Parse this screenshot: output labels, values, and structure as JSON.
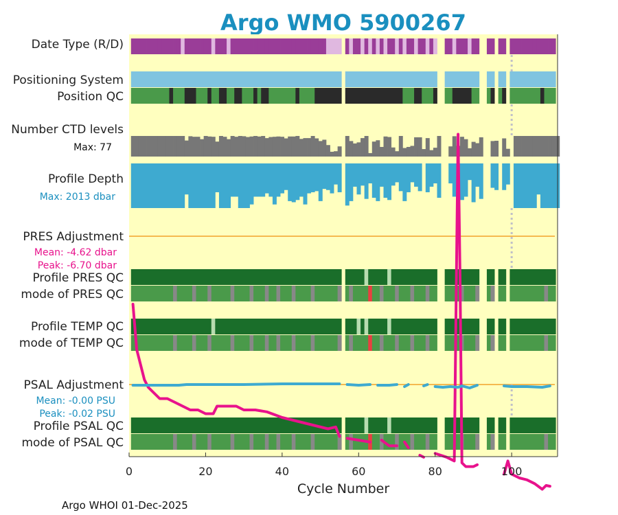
{
  "chart_data": {
    "type": "line",
    "title": "Argo WMO 5900267",
    "xlabel": "Cycle Number",
    "xlim": [
      0,
      112
    ],
    "xticks": [
      0,
      20,
      40,
      60,
      80,
      100
    ],
    "footer": "Argo WHOI 01-Dec-2025",
    "missing_cycles": [
      56,
      81,
      82,
      92,
      93,
      96,
      99
    ],
    "marker_cycle": 100,
    "colors": {
      "background": "#ffffbf",
      "realtime": "#e0b8e0",
      "delayed": "#9a3d98",
      "positioning": "#80c4e0",
      "qc_good": "#4a9a4a",
      "qc_bad": "#2a2a2a",
      "ctd": "#777777",
      "depth": "#3eaad0",
      "pres_adj": "#e8128c",
      "psal_adj": "#3eaad0",
      "ref_line": "#f5b94f",
      "profile_a": "#1a6e2a",
      "profile_light": "#b8dcb0",
      "mode_good": "#4a9a4a",
      "mode_probable": "#888888",
      "mode_bad": "#e84040",
      "title_color": "#1a8fbf"
    },
    "rows": {
      "date_type": {
        "label": "Date Type (R/D)",
        "realtime_cycles": [
          14,
          22,
          26,
          52,
          53,
          54,
          55,
          58,
          61,
          63,
          65,
          67,
          70,
          72,
          75,
          78,
          80,
          85,
          89
        ]
      },
      "positioning": {
        "label": "Positioning System"
      },
      "position_qc": {
        "label": "Position QC",
        "bad_cycles": [
          11,
          15,
          16,
          17,
          21,
          24,
          25,
          28,
          29,
          33,
          35,
          36,
          44,
          49,
          50,
          51,
          52,
          53,
          54,
          55,
          57,
          58,
          59,
          60,
          61,
          62,
          63,
          64,
          65,
          66,
          67,
          68,
          69,
          70,
          71,
          75,
          76,
          80,
          85,
          86,
          87,
          88,
          89,
          95,
          98,
          99,
          108
        ]
      },
      "ctd": {
        "label": "Number CTD levels",
        "max_label": "Max: 77",
        "max": 77,
        "values": [
          77,
          77,
          77,
          77,
          77,
          77,
          77,
          77,
          77,
          77,
          77,
          77,
          77,
          77,
          60,
          76,
          74,
          74,
          65,
          77,
          75,
          74,
          56,
          77,
          74,
          65,
          77,
          74,
          77,
          76,
          73,
          75,
          77,
          75,
          77,
          69,
          73,
          74,
          75,
          74,
          68,
          75,
          75,
          77,
          66,
          69,
          69,
          77,
          68,
          58,
          63,
          43,
          18,
          20,
          38,
          0,
          77,
          58,
          49,
          53,
          69,
          77,
          13,
          56,
          61,
          36,
          75,
          73,
          34,
          20,
          77,
          32,
          36,
          40,
          72,
          72,
          28,
          69,
          24,
          33,
          77,
          0,
          0,
          38,
          76,
          40,
          74,
          65,
          31,
          55,
          50,
          72,
          0,
          0,
          58,
          59,
          0,
          68,
          29,
          0,
          77,
          77,
          77,
          77,
          77,
          77,
          77,
          77,
          77,
          77,
          77,
          77
        ]
      },
      "depth": {
        "label": "Profile Depth",
        "max_label": "Max: 2013 dbar",
        "max": 2013,
        "values": [
          2013,
          2013,
          2013,
          2013,
          2013,
          2013,
          2013,
          2013,
          2013,
          2013,
          2013,
          2013,
          2013,
          2013,
          1400,
          2013,
          2013,
          2013,
          2013,
          2013,
          2013,
          2013,
          1300,
          2013,
          2013,
          2013,
          1500,
          1500,
          2013,
          2013,
          2013,
          1850,
          1500,
          1500,
          1500,
          1350,
          1500,
          1850,
          1500,
          1350,
          1200,
          1700,
          1750,
          1650,
          1500,
          1850,
          1350,
          1300,
          1250,
          1700,
          1150,
          1200,
          1350,
          950,
          1300,
          0,
          1900,
          1700,
          1050,
          1400,
          1000,
          1600,
          900,
          1550,
          1700,
          1050,
          1550,
          1650,
          1000,
          850,
          1250,
          1700,
          1300,
          850,
          1050,
          1250,
          0,
          1300,
          1050,
          900,
          1550,
          0,
          0,
          900,
          1500,
          1300,
          1650,
          1500,
          750,
          1750,
          1050,
          1600,
          0,
          0,
          1100,
          1200,
          0,
          1200,
          950,
          0,
          2013,
          2013,
          2013,
          2013,
          2013,
          2013,
          1400,
          2013,
          2013,
          2013,
          2013,
          2013
        ]
      },
      "pres_adj": {
        "label": "PRES Adjustment",
        "mean_label": "Mean: -4.62 dbar",
        "peak_label": "Peak: -6.70 dbar"
      },
      "pres_qc": {
        "label": "Profile PRES QC",
        "label2": "mode of PRES QC"
      },
      "temp_qc": {
        "label": "Profile TEMP QC",
        "label2": "mode of TEMP QC"
      },
      "psal_adj": {
        "label": "PSAL Adjustment",
        "mean_label": "Mean: -0.00 PSU",
        "peak_label": "Peak: -0.02 PSU"
      },
      "psal_qc": {
        "label": "Profile PSAL QC",
        "label2": "mode of PSAL QC"
      }
    },
    "qc_light_cycles_pres": [
      62,
      68
    ],
    "qc_light_cycles_temp": [
      22,
      60,
      62,
      68
    ],
    "qc_light_cycles_psal": [
      62,
      68
    ],
    "mode_probable_cycles": [
      12,
      17,
      21,
      27,
      32,
      36,
      39,
      43,
      48,
      55,
      58,
      63,
      66,
      70,
      74,
      78,
      82,
      87,
      91,
      95,
      109
    ],
    "mode_bad_cycles": [
      63
    ],
    "pres_series": [
      {
        "x": 1,
        "y": -1.8
      },
      {
        "x": 2,
        "y": -3.0
      },
      {
        "x": 3,
        "y": -3.4
      },
      {
        "x": 4,
        "y": -3.8
      },
      {
        "x": 5,
        "y": -4.0
      },
      {
        "x": 6,
        "y": -4.1
      },
      {
        "x": 7,
        "y": -4.2
      },
      {
        "x": 8,
        "y": -4.3
      },
      {
        "x": 10,
        "y": -4.3
      },
      {
        "x": 12,
        "y": -4.4
      },
      {
        "x": 14,
        "y": -4.5
      },
      {
        "x": 16,
        "y": -4.6
      },
      {
        "x": 18,
        "y": -4.6
      },
      {
        "x": 20,
        "y": -4.7
      },
      {
        "x": 22,
        "y": -4.7
      },
      {
        "x": 23,
        "y": -4.5
      },
      {
        "x": 25,
        "y": -4.5
      },
      {
        "x": 28,
        "y": -4.5
      },
      {
        "x": 30,
        "y": -4.6
      },
      {
        "x": 33,
        "y": -4.6
      },
      {
        "x": 36,
        "y": -4.65
      },
      {
        "x": 40,
        "y": -4.8
      },
      {
        "x": 44,
        "y": -4.9
      },
      {
        "x": 48,
        "y": -5.0
      },
      {
        "x": 52,
        "y": -5.1
      },
      {
        "x": 54,
        "y": -5.05
      },
      {
        "x": 55,
        "y": -5.3
      },
      {
        "x": null,
        "y": null
      },
      {
        "x": 57,
        "y": -5.35
      },
      {
        "x": 60,
        "y": -5.4
      },
      {
        "x": 63,
        "y": -5.45
      },
      {
        "x": null,
        "y": null
      },
      {
        "x": 66,
        "y": -5.4
      },
      {
        "x": 68,
        "y": -5.55
      },
      {
        "x": 70,
        "y": -5.55
      },
      {
        "x": null,
        "y": null
      },
      {
        "x": 72,
        "y": -5.45
      },
      {
        "x": 73,
        "y": -5.6
      },
      {
        "x": null,
        "y": null
      },
      {
        "x": 76,
        "y": -5.8
      },
      {
        "x": 77,
        "y": -5.85
      },
      {
        "x": null,
        "y": null
      },
      {
        "x": 80,
        "y": -5.75
      },
      {
        "x": 83,
        "y": -5.85
      },
      {
        "x": 85,
        "y": -5.95
      },
      {
        "x": 85.5,
        "y": -1.5
      },
      {
        "x": 86,
        "y": 2.7
      },
      {
        "x": 86.5,
        "y": -1.0
      },
      {
        "x": 87,
        "y": -6.0
      },
      {
        "x": 88,
        "y": -6.1
      },
      {
        "x": 90,
        "y": -6.1
      },
      {
        "x": 91,
        "y": -6.05
      },
      {
        "x": null,
        "y": null
      },
      {
        "x": 98,
        "y": -6.3
      },
      {
        "x": 99,
        "y": -5.95
      },
      {
        "x": 100,
        "y": -6.3
      },
      {
        "x": 102,
        "y": -6.4
      },
      {
        "x": 104,
        "y": -6.45
      },
      {
        "x": 106,
        "y": -6.55
      },
      {
        "x": 108,
        "y": -6.7
      },
      {
        "x": 109,
        "y": -6.6
      },
      {
        "x": 110,
        "y": -6.62
      }
    ],
    "psal_series": [
      {
        "x": 1,
        "y": 0.0
      },
      {
        "x": 10,
        "y": 0.0
      },
      {
        "x": 13,
        "y": 0.0
      },
      {
        "x": 15,
        "y": 0.001
      },
      {
        "x": 20,
        "y": 0.001
      },
      {
        "x": 30,
        "y": 0.001
      },
      {
        "x": 40,
        "y": 0.002
      },
      {
        "x": 50,
        "y": 0.002
      },
      {
        "x": 55,
        "y": 0.002
      },
      {
        "x": null,
        "y": null
      },
      {
        "x": 57,
        "y": 0.001
      },
      {
        "x": 60,
        "y": 0.0
      },
      {
        "x": 63,
        "y": 0.001
      },
      {
        "x": null,
        "y": null
      },
      {
        "x": 65,
        "y": 0.0
      },
      {
        "x": 68,
        "y": 0.0
      },
      {
        "x": 70,
        "y": 0.001
      },
      {
        "x": null,
        "y": null
      },
      {
        "x": 72,
        "y": -0.002
      },
      {
        "x": 73,
        "y": 0.001
      },
      {
        "x": null,
        "y": null
      },
      {
        "x": 77,
        "y": -0.001
      },
      {
        "x": 78,
        "y": 0.001
      },
      {
        "x": null,
        "y": null
      },
      {
        "x": 80,
        "y": -0.002
      },
      {
        "x": 82,
        "y": -0.003
      },
      {
        "x": 84,
        "y": -0.002
      },
      {
        "x": 86,
        "y": -0.003
      },
      {
        "x": 87,
        "y": -0.001
      },
      {
        "x": 89,
        "y": -0.004
      },
      {
        "x": 91,
        "y": 0.0
      },
      {
        "x": null,
        "y": null
      },
      {
        "x": 98,
        "y": -0.001
      },
      {
        "x": 100,
        "y": -0.002
      },
      {
        "x": 104,
        "y": -0.002
      },
      {
        "x": 108,
        "y": -0.003
      },
      {
        "x": 110,
        "y": -0.001
      }
    ]
  }
}
